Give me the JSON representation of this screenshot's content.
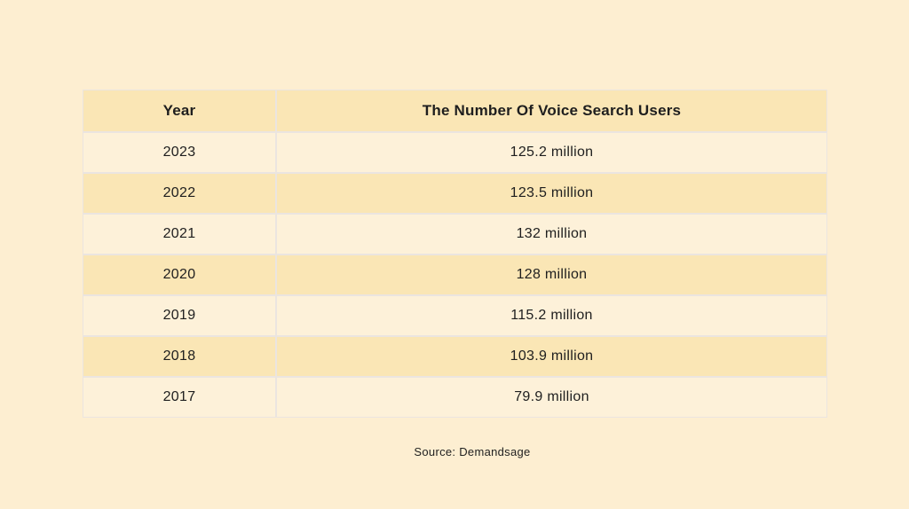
{
  "colors": {
    "page_bg": "#fdeed1",
    "header_bg": "#fae6b5",
    "row_light": "#fdf1d9",
    "row_dark": "#fae6b5",
    "divider": "#ebe5e0",
    "text": "#1e1e1e"
  },
  "table": {
    "header": {
      "year": "Year",
      "users": "The Number Of Voice Search Users"
    },
    "rows": [
      {
        "year": "2023",
        "users": "125.2 million"
      },
      {
        "year": "2022",
        "users": "123.5 million"
      },
      {
        "year": "2021",
        "users": "132 million"
      },
      {
        "year": "2020",
        "users": "128 million"
      },
      {
        "year": "2019",
        "users": "115.2 million"
      },
      {
        "year": "2018",
        "users": "103.9 million"
      },
      {
        "year": "2017",
        "users": "79.9 million"
      }
    ]
  },
  "caption": {
    "source": "Source: Demandsage"
  },
  "chart_data": {
    "type": "table",
    "title": "The Number Of Voice Search Users",
    "columns": [
      "Year",
      "The Number Of Voice Search Users"
    ],
    "categories": [
      "2023",
      "2022",
      "2021",
      "2020",
      "2019",
      "2018",
      "2017"
    ],
    "values": [
      125.2,
      123.5,
      132,
      128,
      115.2,
      103.9,
      79.9
    ],
    "unit": "million users",
    "source": "Source: Demandsage",
    "legend_position": "none",
    "grid": "row-dividers",
    "row_striping": [
      "light",
      "dark",
      "light",
      "dark",
      "light",
      "dark",
      "light"
    ]
  }
}
